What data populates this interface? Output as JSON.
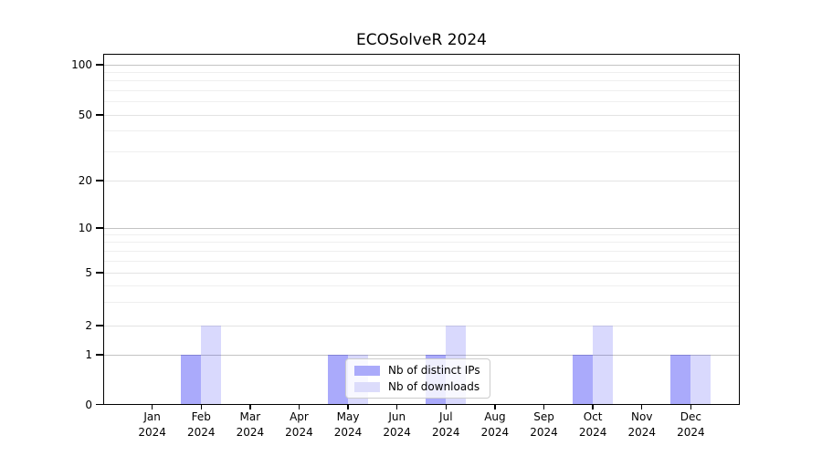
{
  "chart_data": {
    "type": "bar",
    "title": "ECOSolveR 2024",
    "categories": [
      "Jan",
      "Feb",
      "Mar",
      "Apr",
      "May",
      "Jun",
      "Jul",
      "Aug",
      "Sep",
      "Oct",
      "Nov",
      "Dec"
    ],
    "x_axis": {
      "label_line2": "2024"
    },
    "series": [
      {
        "name": "Nb of distinct IPs",
        "color": "#aaaafa",
        "rgba": "rgba(20,20,245,0.36)",
        "values": [
          0,
          1,
          0,
          0,
          1,
          0,
          1,
          0,
          0,
          1,
          0,
          1
        ]
      },
      {
        "name": "Nb of downloads",
        "color": "#dcdcfb",
        "rgba": "rgba(20,20,245,0.16)",
        "values": [
          0,
          2,
          0,
          0,
          1,
          0,
          2,
          0,
          0,
          2,
          0,
          1
        ]
      }
    ],
    "y_axis": {
      "scale": "symlog",
      "tick_values": [
        0,
        1,
        2,
        5,
        10,
        20,
        50,
        100
      ],
      "tick_labels": [
        "0",
        "1",
        "2",
        "5",
        "10",
        "20",
        "50",
        "100"
      ],
      "major_values": [
        1,
        10,
        100
      ],
      "mid_values": [
        2,
        5,
        20,
        50
      ],
      "minor_values": [
        3,
        4,
        6,
        7,
        8,
        9,
        30,
        40,
        60,
        70,
        80,
        90
      ],
      "range": [
        0,
        107
      ]
    },
    "legend": {
      "position": "bottom-center-inside",
      "entries": [
        "Nb of distinct IPs",
        "Nb of downloads"
      ]
    },
    "grid": {
      "horizontal": true,
      "vertical": false,
      "major_color": "#c3c3c3",
      "minor_color": "#efefef"
    },
    "colors": {
      "spine": "#000000",
      "background": "#ffffff"
    }
  }
}
